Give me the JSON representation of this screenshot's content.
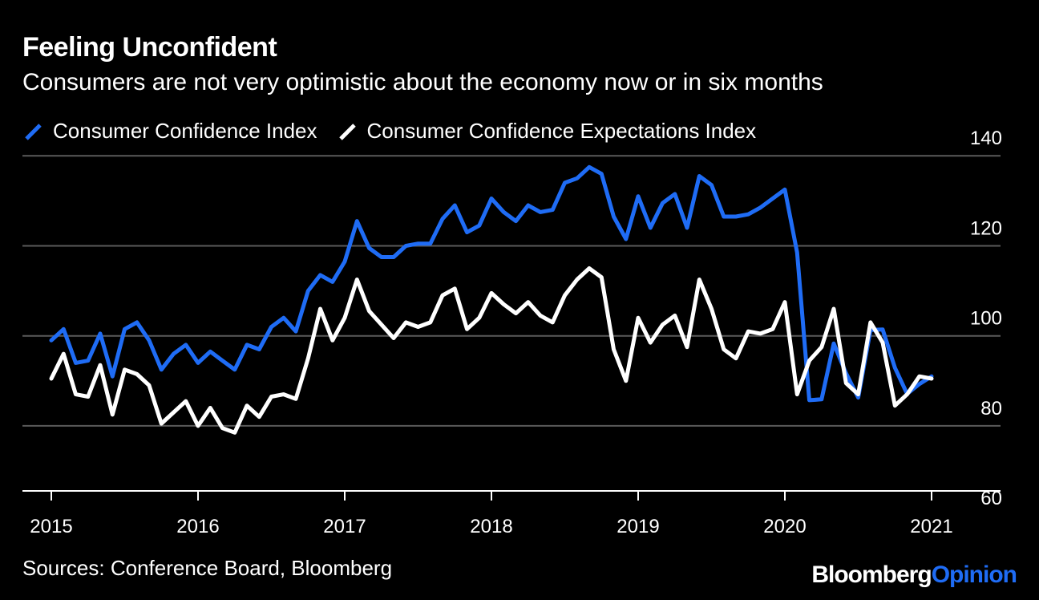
{
  "title": "Feeling Unconfident",
  "subtitle": "Consumers are not very optimistic about the economy now or in six months",
  "source": "Sources: Conference Board, Bloomberg",
  "brand": {
    "part1": "Bloomberg",
    "part2": "Opinion"
  },
  "colors": {
    "background": "#000000",
    "series1": "#1f6cf5",
    "series2": "#ffffff",
    "grid": "#5a5a5a"
  },
  "chart_data": {
    "type": "line",
    "x_start": "2015-01",
    "x_ticks": [
      "2015",
      "2016",
      "2017",
      "2018",
      "2019",
      "2020",
      "2021"
    ],
    "y_ticks": [
      60,
      80,
      100,
      120,
      140
    ],
    "ylim": [
      57,
      142
    ],
    "xlim": [
      "2015-01",
      "2021-06"
    ],
    "grid": true,
    "legend_position": "top-left",
    "series": [
      {
        "name": "Consumer Confidence Index",
        "color": "#1f6cf5",
        "values": [
          99,
          101.5,
          94,
          94.5,
          100.5,
          91,
          101.5,
          103,
          99,
          92.5,
          96,
          98,
          94,
          96.5,
          94.5,
          92.5,
          98,
          97,
          102,
          104,
          101,
          110,
          113.5,
          112,
          116.5,
          125.5,
          119.5,
          117.5,
          117.5,
          120,
          120.5,
          120.5,
          126,
          129,
          123,
          124.5,
          130.5,
          127.5,
          125.5,
          129,
          127.5,
          128,
          134,
          135,
          137.5,
          136,
          126.5,
          121.5,
          131,
          124,
          129.5,
          131.5,
          124,
          135.5,
          133.5,
          126.5,
          126.5,
          127,
          128.5,
          130.5,
          132.5,
          118.5,
          85.7,
          85.9,
          98.3,
          91.7,
          86.3,
          101.3,
          101.4,
          92.9,
          87.1,
          89.3,
          91
        ]
      },
      {
        "name": "Consumer Confidence Expectations Index",
        "color": "#ffffff",
        "values": [
          90.5,
          96,
          87,
          86.5,
          93.5,
          82.5,
          92.5,
          91.5,
          89,
          80.5,
          83,
          85.5,
          80,
          84,
          79.5,
          78.5,
          84.5,
          82,
          86.5,
          87,
          86,
          95,
          106,
          99,
          104,
          112.5,
          105.5,
          102.5,
          99.5,
          103,
          102,
          103,
          109,
          110.5,
          101.5,
          104,
          109.5,
          107,
          105,
          107.5,
          104.5,
          103,
          109,
          112.5,
          115,
          113,
          97,
          90,
          104,
          98.5,
          102.5,
          104.5,
          97.5,
          112.5,
          106,
          97,
          95,
          101,
          100.5,
          101.5,
          107.5,
          87,
          94.5,
          97.5,
          106,
          89.5,
          87,
          103,
          98.5,
          84.5,
          87,
          91,
          90.5
        ]
      }
    ]
  }
}
